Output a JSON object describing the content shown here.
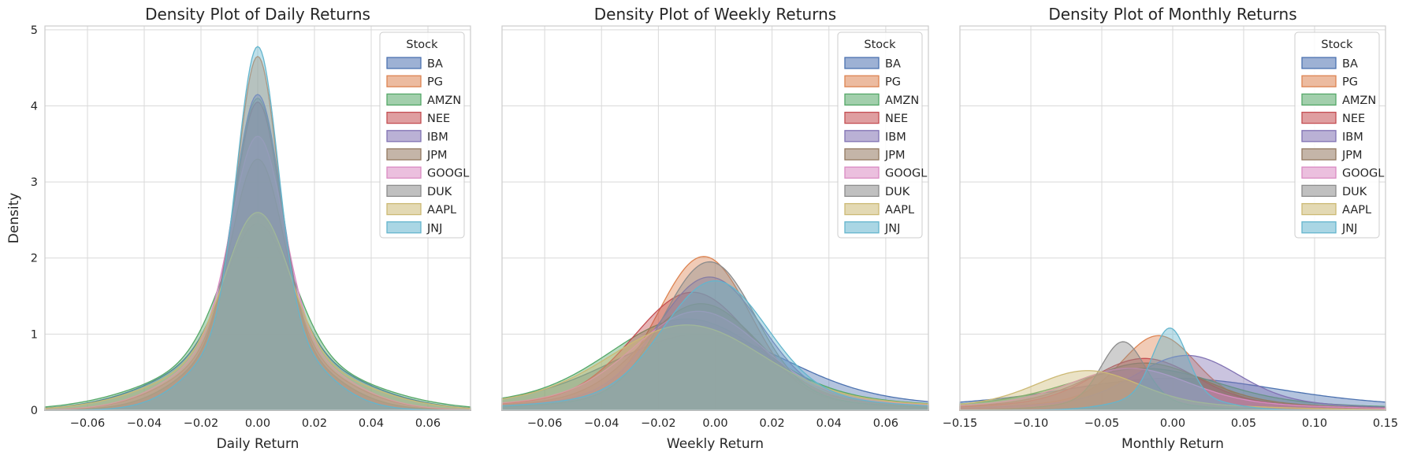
{
  "colors": {
    "BA": "#4c72b0",
    "PG": "#dd8452",
    "AMZN": "#55a868",
    "NEE": "#c44e52",
    "IBM": "#8172b3",
    "JPM": "#937860",
    "GOOGL": "#da8bc3",
    "DUK": "#8c8c8c",
    "AAPL": "#ccb974",
    "JNJ": "#64b5cd"
  },
  "chart_data": [
    {
      "type": "area",
      "title": "Density Plot of Daily Returns",
      "xlabel": "Daily Return",
      "ylabel": "Density",
      "xlim": [
        -0.075,
        0.075
      ],
      "ylim": [
        0,
        5.05
      ],
      "xticks": [
        -0.06,
        -0.04,
        -0.02,
        0.0,
        0.02,
        0.04,
        0.06
      ],
      "xtick_labels": [
        "−0.06",
        "−0.04",
        "−0.02",
        "0.00",
        "0.02",
        "0.04",
        "0.06"
      ],
      "yticks": [
        0,
        1,
        2,
        3,
        4,
        5
      ],
      "ytick_labels": [
        "0",
        "1",
        "2",
        "3",
        "4",
        "5"
      ],
      "legend": {
        "title": "Stock",
        "placement": "top-right"
      },
      "series": [
        {
          "name": "BA",
          "peak": 2.45,
          "center": 0.0,
          "sigma": 0.011,
          "tail": 0.35
        },
        {
          "name": "PG",
          "peak": 4.65,
          "center": 0.0,
          "sigma": 0.007,
          "tail": 0.25
        },
        {
          "name": "AMZN",
          "peak": 2.55,
          "center": 0.0,
          "sigma": 0.012,
          "tail": 0.3
        },
        {
          "name": "NEE",
          "peak": 4.05,
          "center": 0.0,
          "sigma": 0.008,
          "tail": 0.25
        },
        {
          "name": "IBM",
          "peak": 4.15,
          "center": 0.0,
          "sigma": 0.008,
          "tail": 0.25
        },
        {
          "name": "JPM",
          "peak": 3.3,
          "center": 0.0,
          "sigma": 0.009,
          "tail": 0.28
        },
        {
          "name": "GOOGL",
          "peak": 3.6,
          "center": 0.0,
          "sigma": 0.009,
          "tail": 0.28
        },
        {
          "name": "DUK",
          "peak": 4.1,
          "center": 0.0,
          "sigma": 0.008,
          "tail": 0.25
        },
        {
          "name": "AAPL",
          "peak": 2.6,
          "center": 0.0,
          "sigma": 0.011,
          "tail": 0.3
        },
        {
          "name": "JNJ",
          "peak": 4.78,
          "center": 0.0,
          "sigma": 0.007,
          "tail": 0.25
        }
      ]
    },
    {
      "type": "area",
      "title": "Density Plot of Weekly Returns",
      "xlabel": "Weekly Return",
      "ylabel": "",
      "xlim": [
        -0.075,
        0.075
      ],
      "ylim": [
        0,
        5.05
      ],
      "xticks": [
        -0.06,
        -0.04,
        -0.02,
        0.0,
        0.02,
        0.04,
        0.06
      ],
      "xtick_labels": [
        "−0.06",
        "−0.04",
        "−0.02",
        "0.00",
        "0.02",
        "0.04",
        "0.06"
      ],
      "yticks": [
        0,
        1,
        2,
        3,
        4,
        5
      ],
      "ytick_labels": [],
      "legend": {
        "title": "Stock",
        "placement": "top-right"
      },
      "series": [
        {
          "name": "BA",
          "peak": 1.0,
          "center": -0.005,
          "sigma": 0.03,
          "tail": 0.15
        },
        {
          "name": "PG",
          "peak": 2.02,
          "center": -0.004,
          "sigma": 0.016,
          "tail": 0.1
        },
        {
          "name": "AMZN",
          "peak": 1.2,
          "center": -0.01,
          "sigma": 0.026,
          "tail": 0.15
        },
        {
          "name": "NEE",
          "peak": 1.55,
          "center": -0.008,
          "sigma": 0.02,
          "tail": 0.12
        },
        {
          "name": "IBM",
          "peak": 1.75,
          "center": -0.002,
          "sigma": 0.018,
          "tail": 0.12
        },
        {
          "name": "JPM",
          "peak": 1.4,
          "center": -0.005,
          "sigma": 0.02,
          "tail": 0.12
        },
        {
          "name": "GOOGL",
          "peak": 1.3,
          "center": -0.006,
          "sigma": 0.022,
          "tail": 0.14
        },
        {
          "name": "DUK",
          "peak": 1.95,
          "center": -0.002,
          "sigma": 0.016,
          "tail": 0.1
        },
        {
          "name": "AAPL",
          "peak": 1.12,
          "center": -0.01,
          "sigma": 0.026,
          "tail": 0.15
        },
        {
          "name": "JNJ",
          "peak": 1.7,
          "center": 0.0,
          "sigma": 0.018,
          "tail": 0.12
        }
      ]
    },
    {
      "type": "area",
      "title": "Density Plot of Monthly Returns",
      "xlabel": "Monthly Return",
      "ylabel": "",
      "xlim": [
        -0.15,
        0.15
      ],
      "ylim": [
        0,
        5.05
      ],
      "xticks": [
        -0.15,
        -0.1,
        -0.05,
        0.0,
        0.05,
        0.1,
        0.15
      ],
      "xtick_labels": [
        "−0.15",
        "−0.10",
        "−0.05",
        "0.00",
        "0.05",
        "0.10",
        "0.15"
      ],
      "yticks": [
        0,
        1,
        2,
        3,
        4,
        5
      ],
      "ytick_labels": [],
      "legend": {
        "title": "Stock",
        "placement": "top-right"
      },
      "series": [
        {
          "name": "BA",
          "peak": 0.42,
          "center": 0.0,
          "sigma": 0.07,
          "tail": 0.25
        },
        {
          "name": "PG",
          "peak": 0.98,
          "center": -0.01,
          "sigma": 0.025,
          "tail": 0.2
        },
        {
          "name": "AMZN",
          "peak": 0.55,
          "center": -0.02,
          "sigma": 0.05,
          "tail": 0.2
        },
        {
          "name": "NEE",
          "peak": 0.68,
          "center": -0.02,
          "sigma": 0.035,
          "tail": 0.18
        },
        {
          "name": "IBM",
          "peak": 0.72,
          "center": 0.01,
          "sigma": 0.035,
          "tail": 0.18
        },
        {
          "name": "JPM",
          "peak": 0.62,
          "center": -0.02,
          "sigma": 0.04,
          "tail": 0.18
        },
        {
          "name": "GOOGL",
          "peak": 0.55,
          "center": -0.03,
          "sigma": 0.04,
          "tail": 0.2
        },
        {
          "name": "DUK",
          "peak": 0.9,
          "center": -0.035,
          "sigma": 0.015,
          "tail": 0.15
        },
        {
          "name": "AAPL",
          "peak": 0.52,
          "center": -0.06,
          "sigma": 0.035,
          "tail": 0.2
        },
        {
          "name": "JNJ",
          "peak": 1.08,
          "center": -0.002,
          "sigma": 0.012,
          "tail": 0.2
        }
      ]
    }
  ]
}
